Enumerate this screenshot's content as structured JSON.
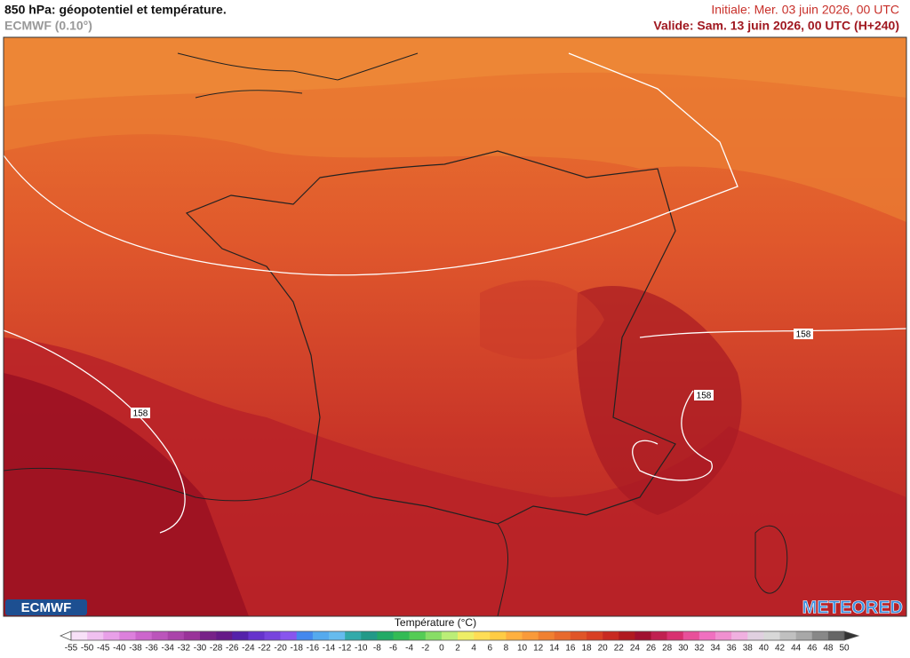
{
  "header": {
    "title": "850 hPa: géopotentiel et température.",
    "model": "ECMWF (0.10°)",
    "initial": "Initiale: Mer. 03 juin 2026, 00 UTC",
    "valid": "Valide: Sam. 13 juin 2026, 00 UTC (H+240)"
  },
  "map": {
    "contour_labels": [
      "158",
      "158",
      "158"
    ],
    "logo_left": "ECMWF",
    "logo_right": "METEORED"
  },
  "legend": {
    "title": "Température (°C)",
    "ticks": [
      -55,
      -50,
      -45,
      -40,
      -38,
      -36,
      -34,
      -32,
      -30,
      -28,
      -26,
      -24,
      -22,
      -20,
      -18,
      -16,
      -14,
      -12,
      -10,
      -8,
      -6,
      -4,
      -2,
      0,
      2,
      4,
      6,
      8,
      10,
      12,
      14,
      16,
      18,
      20,
      22,
      24,
      26,
      28,
      30,
      32,
      34,
      36,
      38,
      40,
      42,
      44,
      46,
      48,
      50
    ],
    "colors": [
      "#f8e0f8",
      "#f0c0f0",
      "#e8a0e8",
      "#dc80dc",
      "#cc66cc",
      "#bb55bb",
      "#aa44aa",
      "#993399",
      "#772288",
      "#661a88",
      "#5522aa",
      "#6633cc",
      "#7744dd",
      "#8855ee",
      "#4488ee",
      "#55aaee",
      "#66bbee",
      "#33aaaa",
      "#229988",
      "#22aa66",
      "#33bb55",
      "#55cc55",
      "#88dd66",
      "#bbee77",
      "#eeee66",
      "#ffdd55",
      "#ffcc44",
      "#ffb040",
      "#f99a3a",
      "#f08030",
      "#e86a2c",
      "#e05528",
      "#d84024",
      "#c82a22",
      "#b01a20",
      "#a01030",
      "#c02050",
      "#d83070",
      "#e8509a",
      "#f070c0",
      "#f090d0",
      "#f0b0e0",
      "#e0d0e0",
      "#d8d8d8",
      "#c0c0c0",
      "#a8a8a8",
      "#888888",
      "#666666"
    ]
  }
}
